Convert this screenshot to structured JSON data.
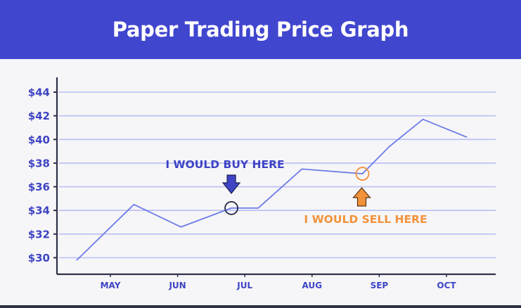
{
  "header": {
    "title": "Paper Trading Price Graph"
  },
  "colors": {
    "header_bg": "#4146cf",
    "line": "#6f7ce8",
    "grid": "#b9bef5",
    "axis": "#2e3148",
    "label": "#3e44c4",
    "buy": "#3e44c4",
    "sell": "#f2923a",
    "buy_marker": "#252845"
  },
  "chart_data": {
    "type": "line",
    "title": "Paper Trading Price Graph",
    "xlabel": "",
    "ylabel": "",
    "categories": [
      "MAY",
      "JUN",
      "JUL",
      "AUG",
      "SEP",
      "OCT"
    ],
    "yticks": [
      "$30",
      "$32",
      "$34",
      "$36",
      "$38",
      "$40",
      "$42",
      "$44"
    ],
    "ylim": [
      29,
      45
    ],
    "grid": true,
    "series": [
      {
        "points": [
          {
            "x": 4.5,
            "y": 29.8
          },
          {
            "x": 5.35,
            "y": 34.5
          },
          {
            "x": 6.05,
            "y": 32.6
          },
          {
            "x": 6.8,
            "y": 34.2
          },
          {
            "x": 7.2,
            "y": 34.2
          },
          {
            "x": 7.85,
            "y": 37.5
          },
          {
            "x": 8.75,
            "y": 37.1
          },
          {
            "x": 9.15,
            "y": 39.4
          },
          {
            "x": 9.65,
            "y": 41.7
          },
          {
            "x": 10.3,
            "y": 40.2
          }
        ]
      }
    ],
    "annotations": [
      {
        "label": "I WOULD BUY HERE",
        "x": 6.8,
        "y": 34.2,
        "type": "buy"
      },
      {
        "label": "I WOULD SELL HERE",
        "x": 8.75,
        "y": 37.1,
        "type": "sell"
      }
    ]
  }
}
